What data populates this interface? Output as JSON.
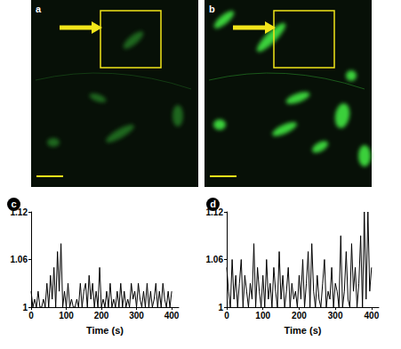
{
  "images": [
    {
      "label": "a"
    },
    {
      "label": "b"
    }
  ],
  "chart_data": [
    {
      "type": "line",
      "title": "c",
      "xlabel": "Time (s)",
      "color": "#000000",
      "xlim": [
        0,
        420
      ],
      "xticks": [
        0,
        100,
        200,
        300,
        400
      ],
      "ylim": [
        1,
        1.12
      ],
      "yticks": [
        1,
        1.06,
        1.12
      ],
      "x": [
        0,
        5,
        10,
        15,
        20,
        25,
        30,
        35,
        40,
        45,
        50,
        55,
        60,
        65,
        70,
        75,
        80,
        85,
        90,
        95,
        100,
        105,
        110,
        115,
        120,
        125,
        130,
        135,
        140,
        145,
        150,
        155,
        160,
        165,
        170,
        175,
        180,
        185,
        190,
        195,
        200,
        205,
        210,
        215,
        220,
        225,
        230,
        235,
        240,
        245,
        250,
        255,
        260,
        265,
        270,
        275,
        280,
        285,
        290,
        295,
        300,
        305,
        310,
        315,
        320,
        325,
        330,
        335,
        340,
        345,
        350,
        355,
        360,
        365,
        370,
        375,
        380,
        385,
        390,
        395,
        400
      ],
      "values": [
        1.02,
        1,
        1.01,
        1,
        1.02,
        1,
        1,
        1.01,
        1,
        1.03,
        1,
        1.04,
        1.01,
        1.05,
        1,
        1.07,
        1.02,
        1.08,
        1,
        1.02,
        1,
        1.03,
        1,
        1.01,
        1,
        1,
        1.01,
        1,
        1.03,
        1,
        1.02,
        1.03,
        1,
        1.04,
        1.01,
        1.03,
        1,
        1.02,
        1,
        1.05,
        1,
        1.01,
        1,
        1.02,
        1,
        1.03,
        1,
        1.01,
        1,
        1.02,
        1,
        1.03,
        1,
        1.02,
        1,
        1.01,
        1,
        1.03,
        1.01,
        1.02,
        1,
        1.03,
        1.01,
        1,
        1.02,
        1,
        1.03,
        1,
        1.02,
        1,
        1.01,
        1.03,
        1,
        1.02,
        1,
        1.03,
        1.01,
        1,
        1.02,
        1,
        1.02
      ]
    },
    {
      "type": "line",
      "title": "d",
      "xlabel": "Time (s)",
      "color": "#000000",
      "xlim": [
        0,
        420
      ],
      "xticks": [
        0,
        100,
        200,
        300,
        400
      ],
      "ylim": [
        1,
        1.12
      ],
      "yticks": [
        1,
        1.06,
        1.12
      ],
      "x": [
        0,
        5,
        10,
        15,
        20,
        25,
        30,
        35,
        40,
        45,
        50,
        55,
        60,
        65,
        70,
        75,
        80,
        85,
        90,
        95,
        100,
        105,
        110,
        115,
        120,
        125,
        130,
        135,
        140,
        145,
        150,
        155,
        160,
        165,
        170,
        175,
        180,
        185,
        190,
        195,
        200,
        205,
        210,
        215,
        220,
        225,
        230,
        235,
        240,
        245,
        250,
        255,
        260,
        265,
        270,
        275,
        280,
        285,
        290,
        295,
        300,
        305,
        310,
        315,
        320,
        325,
        330,
        335,
        340,
        345,
        350,
        355,
        360,
        365,
        370,
        375,
        380,
        385,
        390,
        395,
        400
      ],
      "values": [
        1.05,
        1.02,
        1,
        1.06,
        1.01,
        1.04,
        1,
        1.03,
        1.06,
        1,
        1.04,
        1.02,
        1,
        1.03,
        1.01,
        1.08,
        1,
        1.05,
        1.02,
        1,
        1.04,
        1,
        1.06,
        1.01,
        1.03,
        1,
        1.05,
        1.02,
        1,
        1.07,
        1.01,
        1.04,
        1,
        1.02,
        1.05,
        1,
        1.03,
        1.01,
        1.02,
        1,
        1.04,
        1.01,
        1.06,
        1,
        1.03,
        1.07,
        1,
        1.08,
        1.02,
        1,
        1.04,
        1.01,
        1,
        1.03,
        1.06,
        1,
        1.02,
        1.01,
        1.05,
        1,
        1.03,
        1.02,
        1,
        1.09,
        1,
        1.02,
        1.07,
        1.01,
        1,
        1.08,
        1.02,
        1.05,
        1,
        1.03,
        1.09,
        1,
        1.12,
        1.01,
        1.12,
        1.02,
        1.05
      ]
    }
  ]
}
